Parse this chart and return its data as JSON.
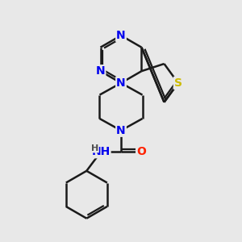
{
  "background_color": "#e8e8e8",
  "atom_colors": {
    "N": "#0000ee",
    "S": "#ccbb00",
    "O": "#ff2200",
    "H": "#505050"
  },
  "bond_color": "#1a1a1a",
  "bond_width": 1.8,
  "font_size": 10,
  "fig_size": [
    3.0,
    3.0
  ],
  "dpi": 100
}
